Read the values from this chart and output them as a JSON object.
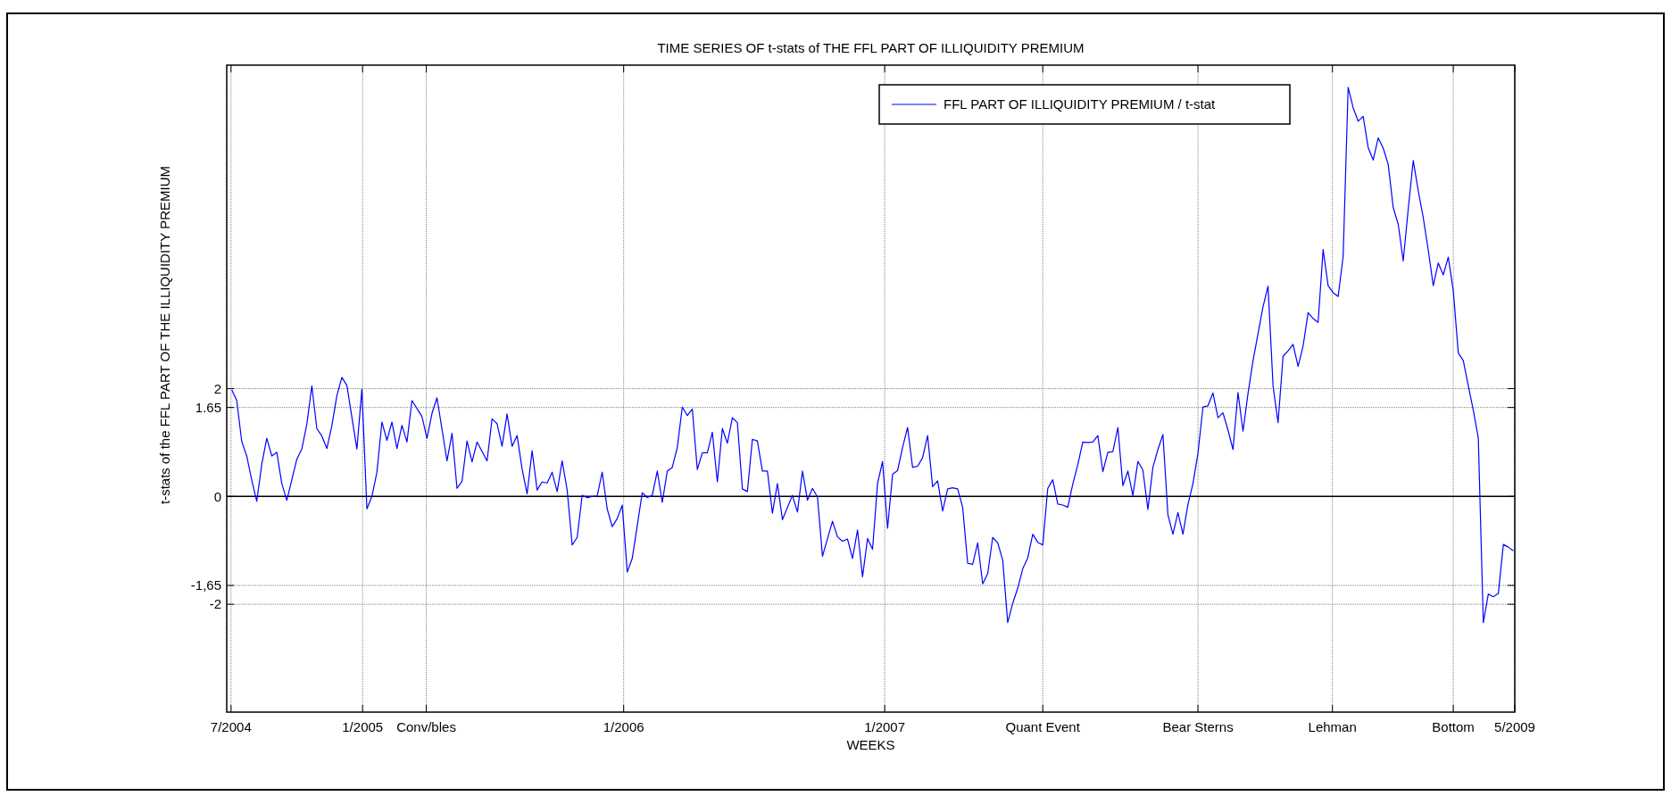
{
  "chart_data": {
    "type": "line",
    "title": "TIME SERIES OF t-stats of THE FFL PART OF ILLIQUIDITY PREMIUM",
    "xlabel": "WEEKS",
    "ylabel": "t-stats of the FFL PART OF THE ILLIQUIDITY PREMIUM",
    "xlim": [
      "2004-06-25",
      "2009-05-31"
    ],
    "xticks": [
      {
        "value": "2004-07-01",
        "label": "7/2004"
      },
      {
        "value": "2005-01-01",
        "label": "1/2005"
      },
      {
        "value": "2005-03-31",
        "label": "Conv/bles"
      },
      {
        "value": "2006-01-01",
        "label": "1/2006"
      },
      {
        "value": "2007-01-01",
        "label": "1/2007"
      },
      {
        "value": "2007-08-10",
        "label": "Quant Event"
      },
      {
        "value": "2008-03-14",
        "label": "Bear Sterns"
      },
      {
        "value": "2008-09-18",
        "label": "Lehman"
      },
      {
        "value": "2009-03-06",
        "label": "Bottom"
      },
      {
        "value": "2009-05-31",
        "label": "5/2009"
      }
    ],
    "ylim": [
      -4,
      8
    ],
    "yticks": [
      -2,
      {
        "value": -1.65,
        "label": "-1,65"
      },
      0,
      1.65,
      2
    ],
    "grid": true,
    "legend": "top right",
    "ref_lines": [
      {
        "axis": "y",
        "value": 0,
        "color": "#000000"
      }
    ],
    "series": [
      {
        "name": "FFL PART OF ILLIQUIDITY PREMIUM / t-stat",
        "color": "#0000ff",
        "x": [
          "2004-07-02",
          "2004-07-09",
          "2004-07-16",
          "2004-07-23",
          "2004-07-30",
          "2004-08-06",
          "2004-08-13",
          "2004-08-20",
          "2004-08-27",
          "2004-09-03",
          "2004-09-10",
          "2004-09-17",
          "2004-09-24",
          "2004-10-01",
          "2004-10-08",
          "2004-10-15",
          "2004-10-22",
          "2004-10-29",
          "2004-11-05",
          "2004-11-12",
          "2004-11-19",
          "2004-11-26",
          "2004-12-03",
          "2004-12-10",
          "2004-12-24",
          "2004-12-31",
          "2005-01-07",
          "2005-01-14",
          "2005-01-21",
          "2005-01-28",
          "2005-02-04",
          "2005-02-11",
          "2005-02-18",
          "2005-02-25",
          "2005-03-04",
          "2005-03-11",
          "2005-03-25",
          "2005-04-01",
          "2005-04-08",
          "2005-04-15",
          "2005-04-29",
          "2005-05-06",
          "2005-05-13",
          "2005-05-20",
          "2005-05-27",
          "2005-06-03",
          "2005-06-10",
          "2005-06-24",
          "2005-07-01",
          "2005-07-08",
          "2005-07-15",
          "2005-07-22",
          "2005-07-29",
          "2005-08-05",
          "2005-08-12",
          "2005-08-19",
          "2005-08-26",
          "2005-09-02",
          "2005-09-09",
          "2005-09-16",
          "2005-09-23",
          "2005-09-30",
          "2005-10-07",
          "2005-10-14",
          "2005-10-21",
          "2005-10-28",
          "2005-11-04",
          "2005-11-11",
          "2005-11-18",
          "2005-11-25",
          "2005-12-02",
          "2005-12-09",
          "2005-12-16",
          "2005-12-23",
          "2005-12-30",
          "2006-01-06",
          "2006-01-13",
          "2006-01-27",
          "2006-02-03",
          "2006-02-10",
          "2006-02-17",
          "2006-02-24",
          "2006-03-03",
          "2006-03-10",
          "2006-03-17",
          "2006-03-24",
          "2006-03-31",
          "2006-04-07",
          "2006-04-14",
          "2006-04-21",
          "2006-04-28",
          "2006-05-05",
          "2006-05-12",
          "2006-05-19",
          "2006-05-26",
          "2006-06-02",
          "2006-06-09",
          "2006-06-16",
          "2006-06-23",
          "2006-06-30",
          "2006-07-07",
          "2006-07-14",
          "2006-07-21",
          "2006-07-28",
          "2006-08-04",
          "2006-08-11",
          "2006-08-25",
          "2006-09-01",
          "2006-09-08",
          "2006-09-15",
          "2006-09-22",
          "2006-09-29",
          "2006-10-06",
          "2006-10-20",
          "2006-10-27",
          "2006-11-03",
          "2006-11-10",
          "2006-11-17",
          "2006-11-24",
          "2006-12-01",
          "2006-12-08",
          "2006-12-15",
          "2006-12-22",
          "2006-12-29",
          "2007-01-05",
          "2007-01-12",
          "2007-01-19",
          "2007-01-26",
          "2007-02-02",
          "2007-02-09",
          "2007-02-16",
          "2007-02-23",
          "2007-03-02",
          "2007-03-09",
          "2007-03-16",
          "2007-03-23",
          "2007-03-30",
          "2007-04-06",
          "2007-04-13",
          "2007-04-20",
          "2007-04-27",
          "2007-05-04",
          "2007-05-11",
          "2007-05-18",
          "2007-05-25",
          "2007-06-01",
          "2007-06-08",
          "2007-06-15",
          "2007-06-22",
          "2007-06-29",
          "2007-07-06",
          "2007-07-13",
          "2007-07-20",
          "2007-07-27",
          "2007-08-03",
          "2007-08-10",
          "2007-08-17",
          "2007-08-24",
          "2007-08-31",
          "2007-09-07",
          "2007-09-14",
          "2007-09-21",
          "2007-09-28",
          "2007-10-05",
          "2007-10-12",
          "2007-10-19",
          "2007-10-26",
          "2007-11-02",
          "2007-11-09",
          "2007-11-16",
          "2007-11-23",
          "2007-11-30",
          "2007-12-07",
          "2007-12-14",
          "2007-12-21",
          "2007-12-28",
          "2008-01-04",
          "2008-01-11",
          "2008-01-18",
          "2008-01-25",
          "2008-02-01",
          "2008-02-08",
          "2008-02-15",
          "2008-02-22",
          "2008-02-29",
          "2008-03-07",
          "2008-03-14",
          "2008-03-21",
          "2008-03-28",
          "2008-04-04",
          "2008-04-11",
          "2008-04-18",
          "2008-04-25",
          "2008-05-02",
          "2008-05-09",
          "2008-05-16",
          "2008-05-23",
          "2008-05-30",
          "2008-06-06",
          "2008-06-13",
          "2008-06-20",
          "2008-06-27",
          "2008-07-04",
          "2008-07-11",
          "2008-07-18",
          "2008-07-25",
          "2008-08-01",
          "2008-08-08",
          "2008-08-15",
          "2008-08-22",
          "2008-08-29",
          "2008-09-05",
          "2008-09-12",
          "2008-09-19",
          "2008-09-26",
          "2008-10-03",
          "2008-10-10",
          "2008-10-17",
          "2008-10-24",
          "2008-10-31",
          "2008-11-07",
          "2008-11-14",
          "2008-11-21",
          "2008-11-28",
          "2008-12-05",
          "2008-12-12",
          "2008-12-19",
          "2008-12-26",
          "2009-01-02",
          "2009-01-09",
          "2009-01-16",
          "2009-01-23",
          "2009-01-30",
          "2009-02-06",
          "2009-02-13",
          "2009-02-20",
          "2009-02-27",
          "2009-03-06",
          "2009-03-13",
          "2009-03-20",
          "2009-03-27",
          "2009-04-03",
          "2009-04-10",
          "2009-04-17",
          "2009-04-24",
          "2009-05-01",
          "2009-05-08",
          "2009-05-15",
          "2009-05-22",
          "2009-05-29"
        ],
        "values": [
          1.98,
          1.78,
          1.02,
          0.75,
          0.3,
          -0.09,
          0.6,
          1.08,
          0.75,
          0.82,
          0.24,
          -0.07,
          0.31,
          0.69,
          0.88,
          1.34,
          2.05,
          1.26,
          1.12,
          0.89,
          1.31,
          1.87,
          2.21,
          2.06,
          0.88,
          1.99,
          -0.23,
          0.0,
          0.45,
          1.38,
          1.04,
          1.38,
          0.89,
          1.32,
          1.01,
          1.78,
          1.48,
          1.08,
          1.54,
          1.83,
          0.66,
          1.17,
          0.15,
          0.28,
          1.03,
          0.64,
          1.01,
          0.66,
          1.44,
          1.35,
          0.93,
          1.53,
          0.93,
          1.13,
          0.51,
          0.05,
          0.85,
          0.12,
          0.27,
          0.25,
          0.45,
          0.09,
          0.66,
          0.12,
          -0.9,
          -0.76,
          0.02,
          -0.02,
          0.0,
          0.01,
          0.45,
          -0.23,
          -0.56,
          -0.41,
          -0.16,
          -1.4,
          -1.15,
          0.07,
          -0.02,
          0.02,
          0.47,
          -0.11,
          0.47,
          0.54,
          0.91,
          1.66,
          1.5,
          1.62,
          0.5,
          0.81,
          0.81,
          1.19,
          0.27,
          1.26,
          0.99,
          1.46,
          1.37,
          0.14,
          0.09,
          1.06,
          1.03,
          0.47,
          0.47,
          -0.31,
          0.24,
          -0.43,
          0.02,
          -0.29,
          0.47,
          -0.07,
          0.15,
          -0.01,
          -1.11,
          -0.46,
          -0.75,
          -0.83,
          -0.79,
          -1.15,
          -0.62,
          -1.49,
          -0.78,
          -0.98,
          0.24,
          0.65,
          -0.59,
          0.41,
          0.48,
          0.91,
          1.28,
          0.54,
          0.56,
          0.72,
          1.13,
          0.18,
          0.29,
          -0.27,
          0.14,
          0.16,
          0.14,
          -0.2,
          -1.24,
          -1.26,
          -0.86,
          -1.62,
          -1.43,
          -0.76,
          -0.86,
          -1.18,
          -2.34,
          -1.98,
          -1.7,
          -1.34,
          -1.14,
          -0.7,
          -0.85,
          -0.9,
          0.15,
          0.31,
          -0.14,
          -0.16,
          -0.2,
          0.23,
          0.59,
          1.01,
          1.0,
          1.01,
          1.13,
          0.46,
          0.82,
          0.83,
          1.28,
          0.2,
          0.47,
          0.02,
          0.65,
          0.49,
          -0.24,
          0.54,
          0.87,
          1.15,
          -0.34,
          -0.7,
          -0.3,
          -0.7,
          -0.15,
          0.24,
          0.8,
          1.66,
          1.68,
          1.92,
          1.46,
          1.55,
          1.23,
          0.87,
          1.93,
          1.21,
          1.91,
          2.52,
          3.02,
          3.52,
          3.9,
          2.05,
          1.37,
          2.6,
          2.7,
          2.82,
          2.41,
          2.79,
          3.41,
          3.3,
          3.23,
          4.58,
          3.91,
          3.78,
          3.71,
          4.45,
          7.59,
          7.21,
          6.96,
          7.05,
          6.47,
          6.24,
          6.65,
          6.46,
          6.16,
          5.36,
          5.05,
          4.37,
          5.33,
          6.23,
          5.67,
          5.17,
          4.57,
          3.91,
          4.33,
          4.11,
          4.44,
          3.82,
          2.66,
          2.52,
          2.05,
          1.6,
          1.08,
          -2.34,
          -1.81,
          -1.86,
          -1.8,
          -0.89,
          -0.94,
          -1.01
        ]
      }
    ]
  }
}
